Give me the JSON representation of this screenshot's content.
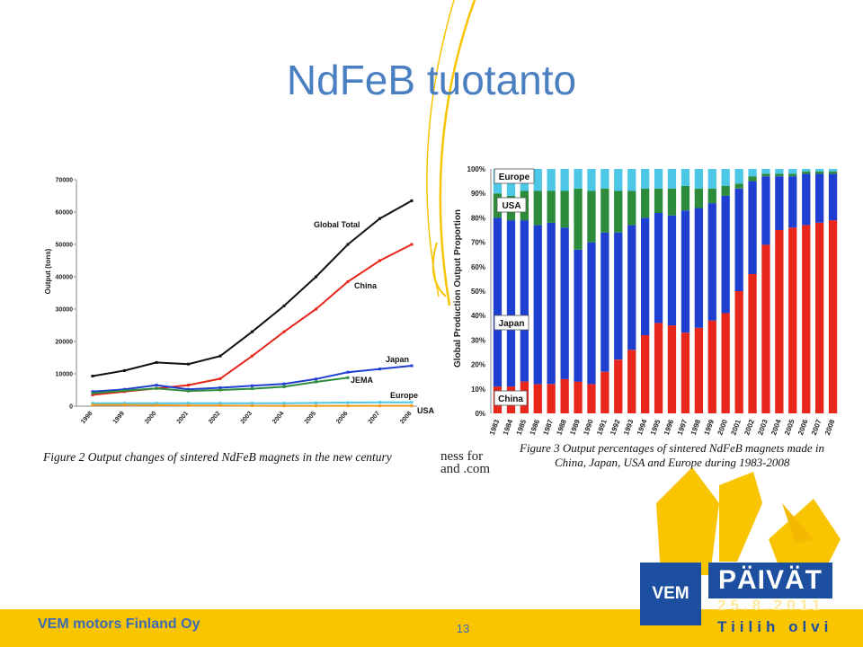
{
  "slide": {
    "title": "NdFeB tuotanto",
    "company": "VEM motors Finland Oy",
    "page": "13",
    "event_logo_left": "VEM",
    "event_logo_right": "PÄIVÄT",
    "event_date": "25.8.2011",
    "event_venue": "Tiilih olvi",
    "colors": {
      "title": "#4a7fc1",
      "footer": "#f9c400",
      "brand_blue": "#1d4fa0"
    }
  },
  "fragment_text": {
    "line1": "ness   for",
    "line2": "and .com"
  },
  "chart_data": [
    {
      "type": "line",
      "caption": "Figure 2  Output changes of sintered NdFeB magnets in the new century",
      "ylabel": "Output (tons)",
      "ylim": [
        0,
        70000
      ],
      "yticks": [
        "0",
        "10000",
        "20000",
        "30000",
        "40000",
        "50000",
        "60000",
        "70000"
      ],
      "categories": [
        "1998",
        "1999",
        "2000",
        "2001",
        "2002",
        "2003",
        "2004",
        "2005",
        "2006",
        "2007",
        "2008"
      ],
      "series": [
        {
          "name": "Global Total",
          "color": "#111111",
          "values": [
            9300,
            11000,
            13500,
            13000,
            15500,
            23000,
            31000,
            40000,
            50000,
            58000,
            63500
          ]
        },
        {
          "name": "China",
          "color": "#e8261c",
          "values": [
            3500,
            4500,
            5500,
            6500,
            8500,
            15500,
            23000,
            30000,
            38500,
            45000,
            50000
          ]
        },
        {
          "name": "Japan",
          "color": "#1f3fd1",
          "values": [
            4500,
            5200,
            6500,
            5200,
            5700,
            6300,
            6900,
            8400,
            10500,
            11500,
            12500
          ]
        },
        {
          "name": "JEMA",
          "color": "#2d8c3c",
          "values": [
            4000,
            4800,
            5500,
            4700,
            5000,
            5400,
            6000,
            7500,
            8800,
            null,
            null
          ]
        },
        {
          "name": "Europe",
          "color": "#4cc7e6",
          "values": [
            900,
            900,
            900,
            900,
            900,
            900,
            900,
            1000,
            1100,
            1200,
            1200
          ]
        },
        {
          "name": "USA",
          "color": "#f39a1c",
          "values": [
            400,
            400,
            300,
            200,
            200,
            150,
            100,
            100,
            100,
            100,
            100
          ]
        }
      ]
    },
    {
      "type": "bar",
      "stacked": true,
      "caption": [
        "Figure 3  Output percentages of sintered NdFeB magnets made in",
        "China, Japan, USA and Europe during 1983-2008"
      ],
      "ylabel": "Global Production Output Proportion",
      "ylim": [
        0,
        100
      ],
      "yticks": [
        "0%",
        "10%",
        "20%",
        "30%",
        "40%",
        "50%",
        "60%",
        "70%",
        "80%",
        "90%",
        "100%"
      ],
      "categories": [
        "1983",
        "1984",
        "1985",
        "1986",
        "1987",
        "1988",
        "1989",
        "1990",
        "1991",
        "1992",
        "1993",
        "1994",
        "1995",
        "1996",
        "1997",
        "1998",
        "1999",
        "2000",
        "2001",
        "2002",
        "2003",
        "2004",
        "2005",
        "2006",
        "2007",
        "2008"
      ],
      "series": [
        {
          "name": "China",
          "color": "#e8261c",
          "values": [
            11,
            11,
            13,
            12,
            12,
            14,
            13,
            12,
            17,
            22,
            26,
            32,
            37,
            36,
            33,
            35,
            38,
            41,
            50,
            57,
            69,
            75,
            76,
            77,
            78,
            79
          ]
        },
        {
          "name": "Japan",
          "color": "#1f3fd1",
          "values": [
            69,
            68,
            66,
            65,
            66,
            62,
            54,
            58,
            57,
            52,
            51,
            48,
            45,
            45,
            50,
            49,
            48,
            48,
            42,
            38,
            28,
            22,
            21,
            21,
            20,
            19
          ]
        },
        {
          "name": "USA",
          "color": "#2d8c3c",
          "values": [
            10,
            10,
            12,
            14,
            13,
            15,
            25,
            21,
            18,
            17,
            14,
            12,
            10,
            11,
            10,
            8,
            6,
            4,
            2,
            2,
            1,
            1,
            1,
            1,
            1,
            1
          ]
        },
        {
          "name": "Europe",
          "color": "#4cc7e6",
          "values": [
            10,
            11,
            9,
            9,
            9,
            9,
            8,
            9,
            8,
            9,
            9,
            8,
            8,
            8,
            7,
            8,
            8,
            7,
            6,
            3,
            2,
            2,
            2,
            1,
            1,
            1
          ]
        }
      ]
    }
  ]
}
